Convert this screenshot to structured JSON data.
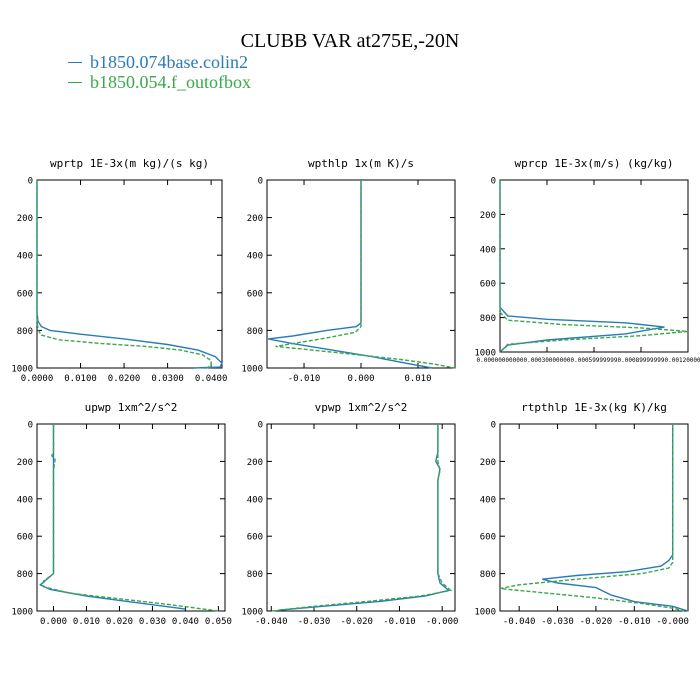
{
  "header": {
    "title": "CLUBB VAR at275E,-20N"
  },
  "legend": [
    {
      "label": "b1850.074base.colin2",
      "color": "#2b7bb9",
      "dash": "solid"
    },
    {
      "label": "b1850.054.f_outofbox",
      "color": "#3aa84a",
      "dash": "dashed"
    }
  ],
  "chart_data": [
    {
      "type": "line",
      "title": "wprtp  1E-3x(m kg)/(s kg)",
      "xlim": [
        0.0,
        0.0425
      ],
      "ylim": [
        0,
        1000
      ],
      "y_reversed": true,
      "x_ticks": [
        0.0,
        0.01,
        0.02,
        0.03,
        0.04
      ],
      "x_tick_labels": [
        "0.0000",
        "0.0100",
        "0.0200",
        "0.0300",
        "0.0400"
      ],
      "y_ticks": [
        0,
        200,
        400,
        600,
        800,
        1000
      ],
      "y_tick_labels": [
        "0",
        "200",
        "400",
        "600",
        "800",
        "1000"
      ],
      "series": [
        {
          "name": "b1850.074base.colin2",
          "color": "#2b7bb9",
          "dash": "solid",
          "x": [
            0.0,
            0.0,
            0.0002,
            0.001,
            0.003,
            0.01,
            0.02,
            0.03,
            0.037,
            0.041,
            0.0425,
            0.042,
            0.036
          ],
          "y": [
            0,
            700,
            750,
            780,
            800,
            820,
            845,
            875,
            905,
            940,
            975,
            995,
            1000
          ]
        },
        {
          "name": "b1850.054.f_outofbox",
          "color": "#3aa84a",
          "dash": "dashed",
          "x": [
            0.0,
            0.0,
            0.0003,
            0.001,
            0.005,
            0.015,
            0.025,
            0.033,
            0.038,
            0.04,
            0.04,
            0.039
          ],
          "y": [
            0,
            750,
            800,
            825,
            850,
            870,
            885,
            905,
            930,
            960,
            985,
            1000
          ]
        }
      ]
    },
    {
      "type": "line",
      "title": "wpthlp  1x(m K)/s",
      "xlim": [
        -0.0165,
        0.0165
      ],
      "ylim": [
        0,
        1000
      ],
      "y_reversed": true,
      "x_ticks": [
        -0.01,
        0.0,
        0.01
      ],
      "x_tick_labels": [
        "-0.010",
        "0.000",
        "0.010"
      ],
      "y_ticks": [
        0,
        200,
        400,
        600,
        800,
        1000
      ],
      "y_tick_labels": [
        "0",
        "200",
        "400",
        "600",
        "800",
        "1000"
      ],
      "series": [
        {
          "name": "b1850.074base.colin2",
          "color": "#2b7bb9",
          "dash": "solid",
          "x": [
            0.0,
            0.0,
            0.0,
            -0.0008,
            -0.006,
            -0.012,
            -0.0163,
            -0.012,
            -0.006,
            0.002,
            0.008,
            0.0125
          ],
          "y": [
            0,
            600,
            760,
            780,
            800,
            830,
            845,
            870,
            900,
            940,
            975,
            1000
          ]
        },
        {
          "name": "b1850.054.f_outofbox",
          "color": "#3aa84a",
          "dash": "dashed",
          "x": [
            0.0,
            0.0,
            0.0,
            -0.001,
            -0.006,
            -0.012,
            -0.015,
            -0.01,
            -0.002,
            0.007,
            0.013,
            0.0165
          ],
          "y": [
            0,
            600,
            780,
            810,
            840,
            870,
            885,
            900,
            925,
            955,
            980,
            1000
          ]
        }
      ]
    },
    {
      "type": "line",
      "title": "wprcp  1E-3x(m/s) (kg/kg)",
      "xlim": [
        0.0,
        0.0012
      ],
      "ylim": [
        0,
        1000
      ],
      "y_reversed": true,
      "x_tick_labels": [
        "0.00000000000",
        "0.00030000000",
        "0.00059999999",
        "0.00089999999",
        "0.00120000000"
      ],
      "x_ticks": [
        0.0,
        0.0003,
        0.0006,
        0.0009,
        0.0012
      ],
      "y_ticks": [
        0,
        200,
        400,
        600,
        800,
        1000
      ],
      "y_tick_labels": [
        "0",
        "200",
        "400",
        "600",
        "800",
        "1000"
      ],
      "series": [
        {
          "name": "b1850.074base.colin2",
          "color": "#2b7bb9",
          "dash": "solid",
          "x": [
            0.0,
            0.0,
            5e-05,
            0.0003,
            0.0008,
            0.00105,
            0.0008,
            0.0003,
            5e-05,
            0.0
          ],
          "y": [
            0,
            740,
            790,
            810,
            830,
            855,
            895,
            930,
            960,
            1000
          ]
        },
        {
          "name": "b1850.054.f_outofbox",
          "color": "#3aa84a",
          "dash": "dashed",
          "x": [
            0.0,
            0.0,
            5e-05,
            0.0004,
            0.0009,
            0.0012,
            0.0009,
            0.0004,
            5e-05,
            0.0
          ],
          "y": [
            0,
            770,
            815,
            840,
            860,
            880,
            905,
            930,
            955,
            1000
          ]
        }
      ]
    },
    {
      "type": "line",
      "title": "upwp  1xm^2/s^2",
      "xlim": [
        -0.005,
        0.052
      ],
      "ylim": [
        0,
        1000
      ],
      "y_reversed": true,
      "x_ticks": [
        0.0,
        0.01,
        0.02,
        0.03,
        0.04,
        0.05
      ],
      "x_tick_labels": [
        "0.000",
        "0.010",
        "0.020",
        "0.030",
        "0.040",
        "0.050"
      ],
      "y_ticks": [
        0,
        200,
        400,
        600,
        800,
        1000
      ],
      "y_tick_labels": [
        "0",
        "200",
        "400",
        "600",
        "800",
        "1000"
      ],
      "series": [
        {
          "name": "b1850.074base.colin2",
          "color": "#2b7bb9",
          "dash": "solid",
          "x": [
            0.0,
            0.0,
            0.0,
            -0.002,
            -0.004,
            -0.001,
            0.01,
            0.025,
            0.04
          ],
          "y": [
            0,
            600,
            800,
            830,
            860,
            885,
            920,
            955,
            990
          ]
        },
        {
          "name": "b1850.054.f_outofbox",
          "color": "#3aa84a",
          "dash": "dashed",
          "x": [
            0.0,
            0.0,
            -0.0005,
            0.0005,
            0.0,
            0.0,
            -0.003,
            -0.003,
            0.005,
            0.02,
            0.035,
            0.05
          ],
          "y": [
            0,
            150,
            170,
            190,
            250,
            800,
            840,
            870,
            905,
            935,
            965,
            1000
          ]
        }
      ]
    },
    {
      "type": "line",
      "title": "vpwp  1xm^2/s^2",
      "xlim": [
        -0.041,
        0.003
      ],
      "ylim": [
        0,
        1000
      ],
      "y_reversed": true,
      "x_ticks": [
        -0.04,
        -0.03,
        -0.02,
        -0.01,
        0.0
      ],
      "x_tick_labels": [
        "-0.040",
        "-0.030",
        "-0.020",
        "-0.010",
        "-0.000"
      ],
      "y_ticks": [
        0,
        200,
        400,
        600,
        800,
        1000
      ],
      "y_tick_labels": [
        "0",
        "200",
        "400",
        "600",
        "800",
        "1000"
      ],
      "series": [
        {
          "name": "b1850.074base.colin2",
          "color": "#2b7bb9",
          "dash": "solid",
          "x": [
            -0.001,
            -0.001,
            -0.0015,
            -0.0005,
            -0.001,
            -0.001,
            -0.0005,
            0.0015,
            -0.004,
            -0.015,
            -0.028,
            -0.038
          ],
          "y": [
            0,
            150,
            200,
            240,
            300,
            800,
            850,
            890,
            920,
            950,
            975,
            995
          ]
        },
        {
          "name": "b1850.054.f_outofbox",
          "color": "#3aa84a",
          "dash": "dashed",
          "x": [
            -0.001,
            -0.001,
            -0.0005,
            -0.001,
            -0.001,
            0.0,
            0.002,
            -0.005,
            -0.018,
            -0.03,
            -0.04
          ],
          "y": [
            0,
            200,
            250,
            300,
            800,
            850,
            890,
            920,
            950,
            975,
            1000
          ]
        }
      ]
    },
    {
      "type": "line",
      "title": "rtpthlp  1E-3x(kg K)/kg",
      "xlim": [
        -0.045,
        0.004
      ],
      "ylim": [
        0,
        1000
      ],
      "y_reversed": true,
      "x_ticks": [
        -0.04,
        -0.03,
        -0.02,
        -0.01,
        0.0
      ],
      "x_tick_labels": [
        "-0.040",
        "-0.030",
        "-0.020",
        "-0.010",
        "-0.000"
      ],
      "y_ticks": [
        0,
        200,
        400,
        600,
        800,
        1000
      ],
      "y_tick_labels": [
        "0",
        "200",
        "400",
        "600",
        "800",
        "1000"
      ],
      "series": [
        {
          "name": "b1850.074base.colin2",
          "color": "#2b7bb9",
          "dash": "solid",
          "x": [
            0.0,
            0.0,
            -0.001,
            -0.003,
            -0.012,
            -0.025,
            -0.034,
            -0.03,
            -0.02,
            -0.016,
            -0.01,
            0.0,
            0.004
          ],
          "y": [
            0,
            700,
            730,
            760,
            790,
            810,
            830,
            850,
            875,
            915,
            950,
            975,
            1000
          ]
        },
        {
          "name": "b1850.054.f_outofbox",
          "color": "#3aa84a",
          "dash": "dashed",
          "x": [
            0.0,
            0.0,
            -0.001,
            -0.008,
            -0.025,
            -0.04,
            -0.045,
            -0.035,
            -0.02,
            -0.008,
            0.0,
            0.003
          ],
          "y": [
            0,
            740,
            770,
            800,
            830,
            860,
            880,
            900,
            930,
            960,
            985,
            1000
          ]
        }
      ]
    }
  ]
}
